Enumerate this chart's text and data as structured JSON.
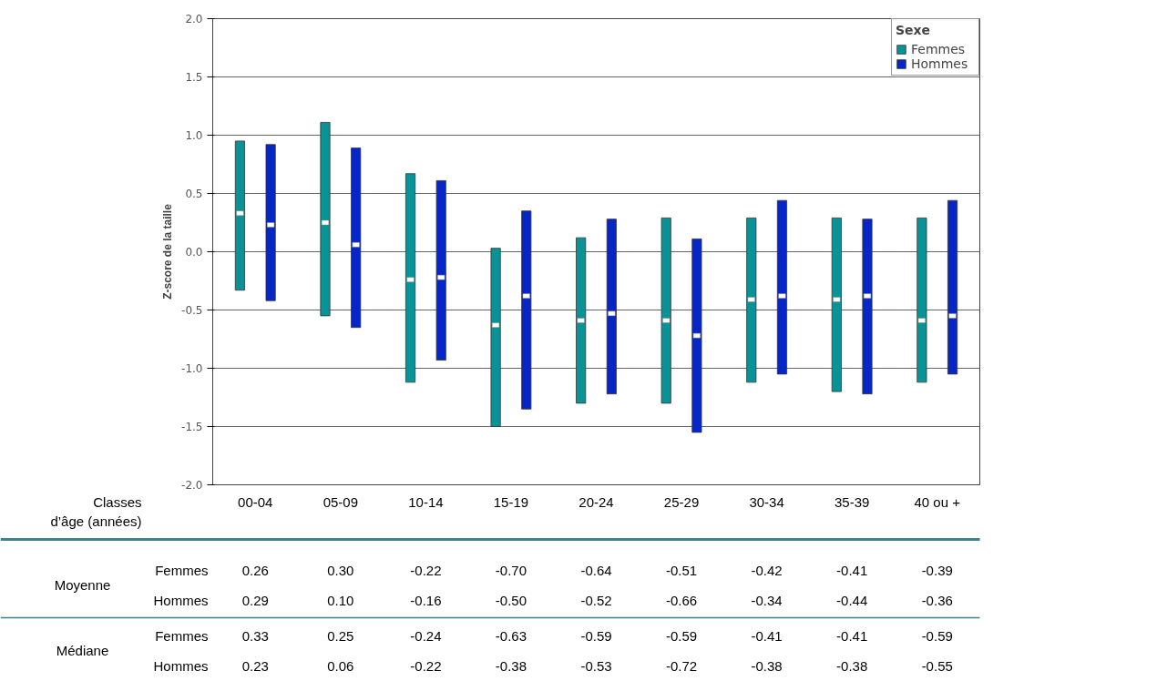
{
  "chart_data": {
    "type": "bar",
    "ylabel": "Z-score de la taille",
    "xlabel": "Classes\nd’âge (années)",
    "legend_title": "Sexe",
    "categories": [
      "00-04",
      "05-09",
      "10-14",
      "15-19",
      "20-24",
      "25-29",
      "30-34",
      "35-39",
      "40 ou +"
    ],
    "series": [
      {
        "name": "Femmes",
        "color": "#0a9396",
        "base": [
          -0.33,
          -0.55,
          -1.12,
          -1.5,
          -1.3,
          -1.3,
          -1.12,
          -1.2,
          -1.12
        ],
        "values": [
          1.28,
          1.66,
          1.79,
          1.53,
          1.42,
          1.59,
          1.41,
          1.49,
          1.41
        ]
      },
      {
        "name": "Hommes",
        "color": "#0726c8",
        "base": [
          -0.42,
          -0.65,
          -0.93,
          -1.35,
          -1.22,
          -1.55,
          -1.05,
          -1.22,
          -1.05
        ],
        "values": [
          1.34,
          1.54,
          1.54,
          1.7,
          1.5,
          1.66,
          1.49,
          1.5,
          1.49
        ]
      },
      {
        "type": "scatter",
        "marker": "square",
        "color": "#ffffff",
        "values": [
          0.33,
          0.25,
          -0.24,
          -0.63,
          -0.59,
          -0.59,
          -0.41,
          -0.41,
          -0.59
        ]
      },
      {
        "type": "scatter",
        "marker": "square",
        "color": "#ffffff",
        "values": [
          0.23,
          0.06,
          -0.22,
          -0.38,
          -0.53,
          -0.72,
          -0.38,
          -0.38,
          -0.55
        ]
      }
    ],
    "annotations": [
      "Moyenne",
      "Femmes",
      "Hommes",
      "Médiane",
      "Femmes",
      "Hommes",
      "0.26",
      "0.30",
      "-0.22",
      "-0.70",
      "-0.64",
      "-0.51",
      "-0.42",
      "-0.41",
      "-0.39",
      "0.29",
      "0.10",
      "-0.16",
      "-0.50",
      "-0.52",
      "-0.66",
      "-0.34",
      "-0.44",
      "-0.36",
      "0.33",
      "0.25",
      "-0.24",
      "-0.63",
      "-0.59",
      "-0.59",
      "-0.41",
      "-0.41",
      "-0.59",
      "0.23",
      "0.06",
      "-0.22",
      "-0.38",
      "-0.53",
      "-0.72",
      "-0.38",
      "-0.38",
      "-0.55"
    ],
    "ylim": [
      -2,
      2
    ],
    "yticks": [
      {
        "value": -2,
        "label": "-2.0"
      },
      {
        "value": -1.5,
        "label": "-1.5"
      },
      {
        "value": -1,
        "label": "-1.0"
      },
      {
        "value": -0.5,
        "label": "-0.5"
      },
      {
        "value": 0,
        "label": "0.0"
      },
      {
        "value": 0.5,
        "label": "0.5"
      },
      {
        "value": 1,
        "label": "1.0"
      },
      {
        "value": 1.5,
        "label": "1.5"
      },
      {
        "value": 2,
        "label": "2.0"
      }
    ],
    "grid": "y",
    "legend": "top right"
  }
}
